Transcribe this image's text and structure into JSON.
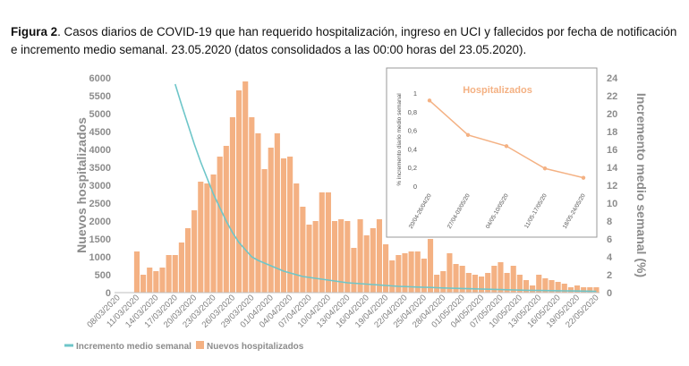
{
  "caption": {
    "label": "Figura 2",
    "text": ". Casos diarios de COVID-19 que han requerido hospitalización, ingreso en UCI y fallecidos por fecha de notificación e incremento medio semanal. 23.05.2020 (datos consolidados a las 00:00 horas del 23.05.2020)."
  },
  "colors": {
    "bars": "#f4b183",
    "line": "#6ec6c9",
    "axis_text": "#8c8c8c",
    "inset_line": "#f4b183",
    "inset_title": "#f4b183"
  },
  "chart_data": [
    {
      "type": "bar",
      "title": "",
      "ylabel": "Nuevos hospitalizados",
      "y2label": "Incremento medio semanal (%)",
      "ylim": [
        0,
        6000
      ],
      "y2lim": [
        0,
        24
      ],
      "yticks": [
        "0",
        "500",
        "1000",
        "1500",
        "2000",
        "2500",
        "3000",
        "3500",
        "4000",
        "4500",
        "5000",
        "5500",
        "6000"
      ],
      "y2ticks": [
        "0",
        "2",
        "4",
        "6",
        "8",
        "10",
        "12",
        "14",
        "16",
        "18",
        "20",
        "22",
        "24"
      ],
      "xtick_labels": [
        "08/03/2020",
        "11/03/2020",
        "14/03/2020",
        "17/03/2020",
        "20/03/2020",
        "23/03/2020",
        "26/03/2020",
        "29/03/2020",
        "01/04/2020",
        "04/04/2020",
        "07/04/2020",
        "10/04/2020",
        "13/04/2020",
        "16/04/2020",
        "19/04/2020",
        "22/04/2020",
        "25/04/2020",
        "28/04/2020",
        "01/05/2020",
        "04/05/2020",
        "07/05/2020",
        "10/05/2020",
        "13/05/2020",
        "16/05/2020",
        "19/05/2020",
        "22/05/2020"
      ],
      "legend": {
        "placement": "bottom-left",
        "entries": [
          "Incremento medio semanal",
          "Nuevos hospitalizados"
        ]
      },
      "series": [
        {
          "name": "Nuevos hospitalizados",
          "kind": "bar",
          "values": [
            0,
            0,
            0,
            1150,
            500,
            700,
            600,
            700,
            1050,
            1050,
            1400,
            1800,
            2300,
            3100,
            3050,
            3300,
            3800,
            4100,
            4900,
            5650,
            5900,
            4900,
            4450,
            3450,
            4050,
            4450,
            3750,
            3800,
            3050,
            2400,
            1900,
            2000,
            2800,
            2800,
            2000,
            2050,
            2000,
            1250,
            2050,
            1600,
            1800,
            2050,
            1350,
            900,
            1050,
            1100,
            1150,
            1150,
            950,
            1500,
            500,
            600,
            1100,
            800,
            750,
            550,
            500,
            450,
            550,
            750,
            850,
            550,
            750,
            500,
            350,
            200,
            500,
            400,
            350,
            300,
            250,
            150,
            200,
            150,
            150,
            150
          ]
        },
        {
          "name": "Incremento medio semanal",
          "kind": "line",
          "axis": "right",
          "x_start_index": 9,
          "values": [
            23.3,
            21.0,
            18.8,
            16.6,
            14.6,
            12.8,
            11.0,
            9.5,
            8.0,
            6.7,
            5.6,
            4.8,
            4.0,
            3.6,
            3.3,
            3.0,
            2.7,
            2.4,
            2.2,
            2.0,
            1.8,
            1.7,
            1.6,
            1.5,
            1.4,
            1.3,
            1.2,
            1.1,
            1.05,
            1.0,
            0.95,
            0.9,
            0.85,
            0.8,
            0.75,
            0.7,
            0.68,
            0.65,
            0.62,
            0.6,
            0.58,
            0.55,
            0.52,
            0.5,
            0.48,
            0.46,
            0.44,
            0.42,
            0.4,
            0.38,
            0.36,
            0.34,
            0.32,
            0.3,
            0.28,
            0.26,
            0.25,
            0.24,
            0.23,
            0.22,
            0.21,
            0.2,
            0.19,
            0.18,
            0.17,
            0.16,
            0.15
          ]
        }
      ]
    },
    {
      "type": "line",
      "title": "Hospitalizados",
      "ylabel": "% incremento diario medio semanal",
      "ylim": [
        0,
        1
      ],
      "yticks": [
        "0",
        "0,2",
        "0,4",
        "0,6",
        "0,8",
        "1"
      ],
      "categories": [
        "20/04-26/04/20",
        "27/04-03/05/20",
        "04/05-10/05/20",
        "11/05-17/05/20",
        "18/05-24/05/20"
      ],
      "values": [
        0.92,
        0.55,
        0.43,
        0.19,
        0.09
      ]
    }
  ]
}
